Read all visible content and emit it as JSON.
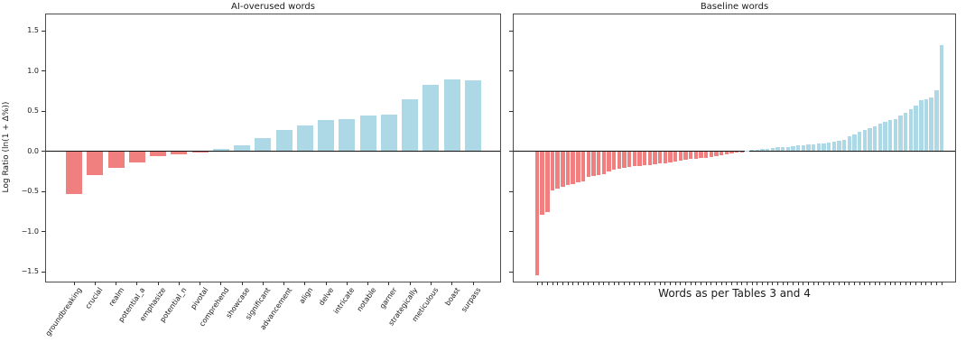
{
  "figure": {
    "ylabel": "Log Ratio (ln(1 + Δ%))",
    "colors": {
      "positive_bar": "#ADD8E6",
      "negative_bar": "#F08080",
      "axis": "#4d4d4d",
      "text": "#1a1a1a",
      "background": "#ffffff"
    }
  },
  "chart_data": [
    {
      "type": "bar",
      "title": "AI-overused words",
      "ylabel": "Log Ratio (ln(1 + Δ%))",
      "categories": [
        "groundbreaking",
        "crucial",
        "realm",
        "potential_a",
        "emphasize",
        "potential_n",
        "pivotal",
        "comprehend",
        "showcase",
        "significant",
        "advancement",
        "align",
        "delve",
        "intricate",
        "notable",
        "garner",
        "strategically",
        "meticulous",
        "boast",
        "surpass"
      ],
      "values": [
        -0.53,
        -0.3,
        -0.21,
        -0.14,
        -0.06,
        -0.04,
        -0.01,
        0.03,
        0.07,
        0.16,
        0.26,
        0.32,
        0.39,
        0.4,
        0.44,
        0.45,
        0.65,
        0.83,
        0.89,
        0.88
      ],
      "yticks": [
        1.5,
        1.0,
        0.5,
        0.0,
        -0.5,
        -1.0,
        -1.5
      ],
      "ytick_labels": [
        "1.5",
        "1.0",
        "0.5",
        "0.0",
        "−0.5",
        "−1.0",
        "−1.5"
      ],
      "ylim": [
        -1.62,
        1.7
      ],
      "grid": false,
      "legend": null,
      "color_rule": "negative bars lightcoral, positive bars lightblue"
    },
    {
      "type": "bar",
      "title": "Baseline words",
      "xlabel": "Words as per Tables 3 and 4",
      "categories": [],
      "values": [
        -1.55,
        -0.79,
        -0.76,
        -0.49,
        -0.47,
        -0.44,
        -0.42,
        -0.41,
        -0.39,
        -0.38,
        -0.32,
        -0.31,
        -0.3,
        -0.29,
        -0.25,
        -0.23,
        -0.22,
        -0.21,
        -0.2,
        -0.19,
        -0.18,
        -0.175,
        -0.17,
        -0.16,
        -0.155,
        -0.15,
        -0.14,
        -0.13,
        -0.12,
        -0.11,
        -0.1,
        -0.09,
        -0.085,
        -0.08,
        -0.07,
        -0.06,
        -0.05,
        -0.04,
        -0.03,
        -0.02,
        -0.01,
        0.01,
        0.015,
        0.02,
        0.025,
        0.03,
        0.04,
        0.045,
        0.05,
        0.055,
        0.06,
        0.07,
        0.075,
        0.08,
        0.085,
        0.09,
        0.1,
        0.11,
        0.12,
        0.13,
        0.14,
        0.19,
        0.21,
        0.24,
        0.26,
        0.29,
        0.31,
        0.34,
        0.37,
        0.385,
        0.4,
        0.44,
        0.48,
        0.52,
        0.57,
        0.63,
        0.65,
        0.67,
        0.76,
        1.32
      ],
      "yticks": [
        1.5,
        1.0,
        0.5,
        0.0,
        -0.5,
        -1.0,
        -1.5
      ],
      "ytick_labels": [],
      "ylim": [
        -1.62,
        1.7
      ],
      "grid": false,
      "legend": null,
      "color_rule": "negative bars lightcoral, positive bars lightblue"
    }
  ]
}
